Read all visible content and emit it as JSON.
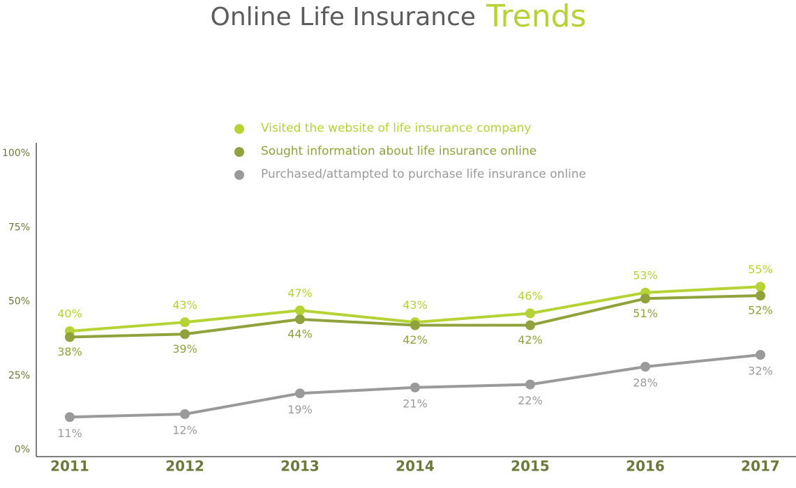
{
  "chart_data": {
    "type": "line",
    "title": "Online Life Insurance",
    "title_accent": "Trends",
    "categories": [
      "2011",
      "2012",
      "2013",
      "2014",
      "2015",
      "2016",
      "2017"
    ],
    "series": [
      {
        "name": "Visited the website of life insurance company",
        "color": "#b5d334",
        "values": [
          40,
          43,
          47,
          43,
          46,
          53,
          55
        ],
        "value_labels": [
          "40%",
          "43%",
          "47%",
          "43%",
          "46%",
          "53%",
          "55%"
        ]
      },
      {
        "name": "Sought information about life insurance online",
        "color": "#8fa23c",
        "values": [
          38,
          39,
          44,
          42,
          42,
          51,
          52
        ],
        "value_labels": [
          "38%",
          "39%",
          "44%",
          "42%",
          "42%",
          "51%",
          "52%"
        ]
      },
      {
        "name": "Purchased/attampted to purchase life insurance online",
        "color": "#9a9a9a",
        "values": [
          11,
          12,
          19,
          21,
          22,
          28,
          32
        ],
        "value_labels": [
          "11%",
          "12%",
          "19%",
          "21%",
          "22%",
          "28%",
          "32%"
        ]
      }
    ],
    "ylim": [
      0,
      100
    ],
    "yticks": [
      {
        "value": 0,
        "label": "0%"
      },
      {
        "value": 25,
        "label": "25%"
      },
      {
        "value": 50,
        "label": "50%"
      },
      {
        "value": 75,
        "label": "75%"
      },
      {
        "value": 100,
        "label": "100%"
      }
    ],
    "grid": false
  }
}
